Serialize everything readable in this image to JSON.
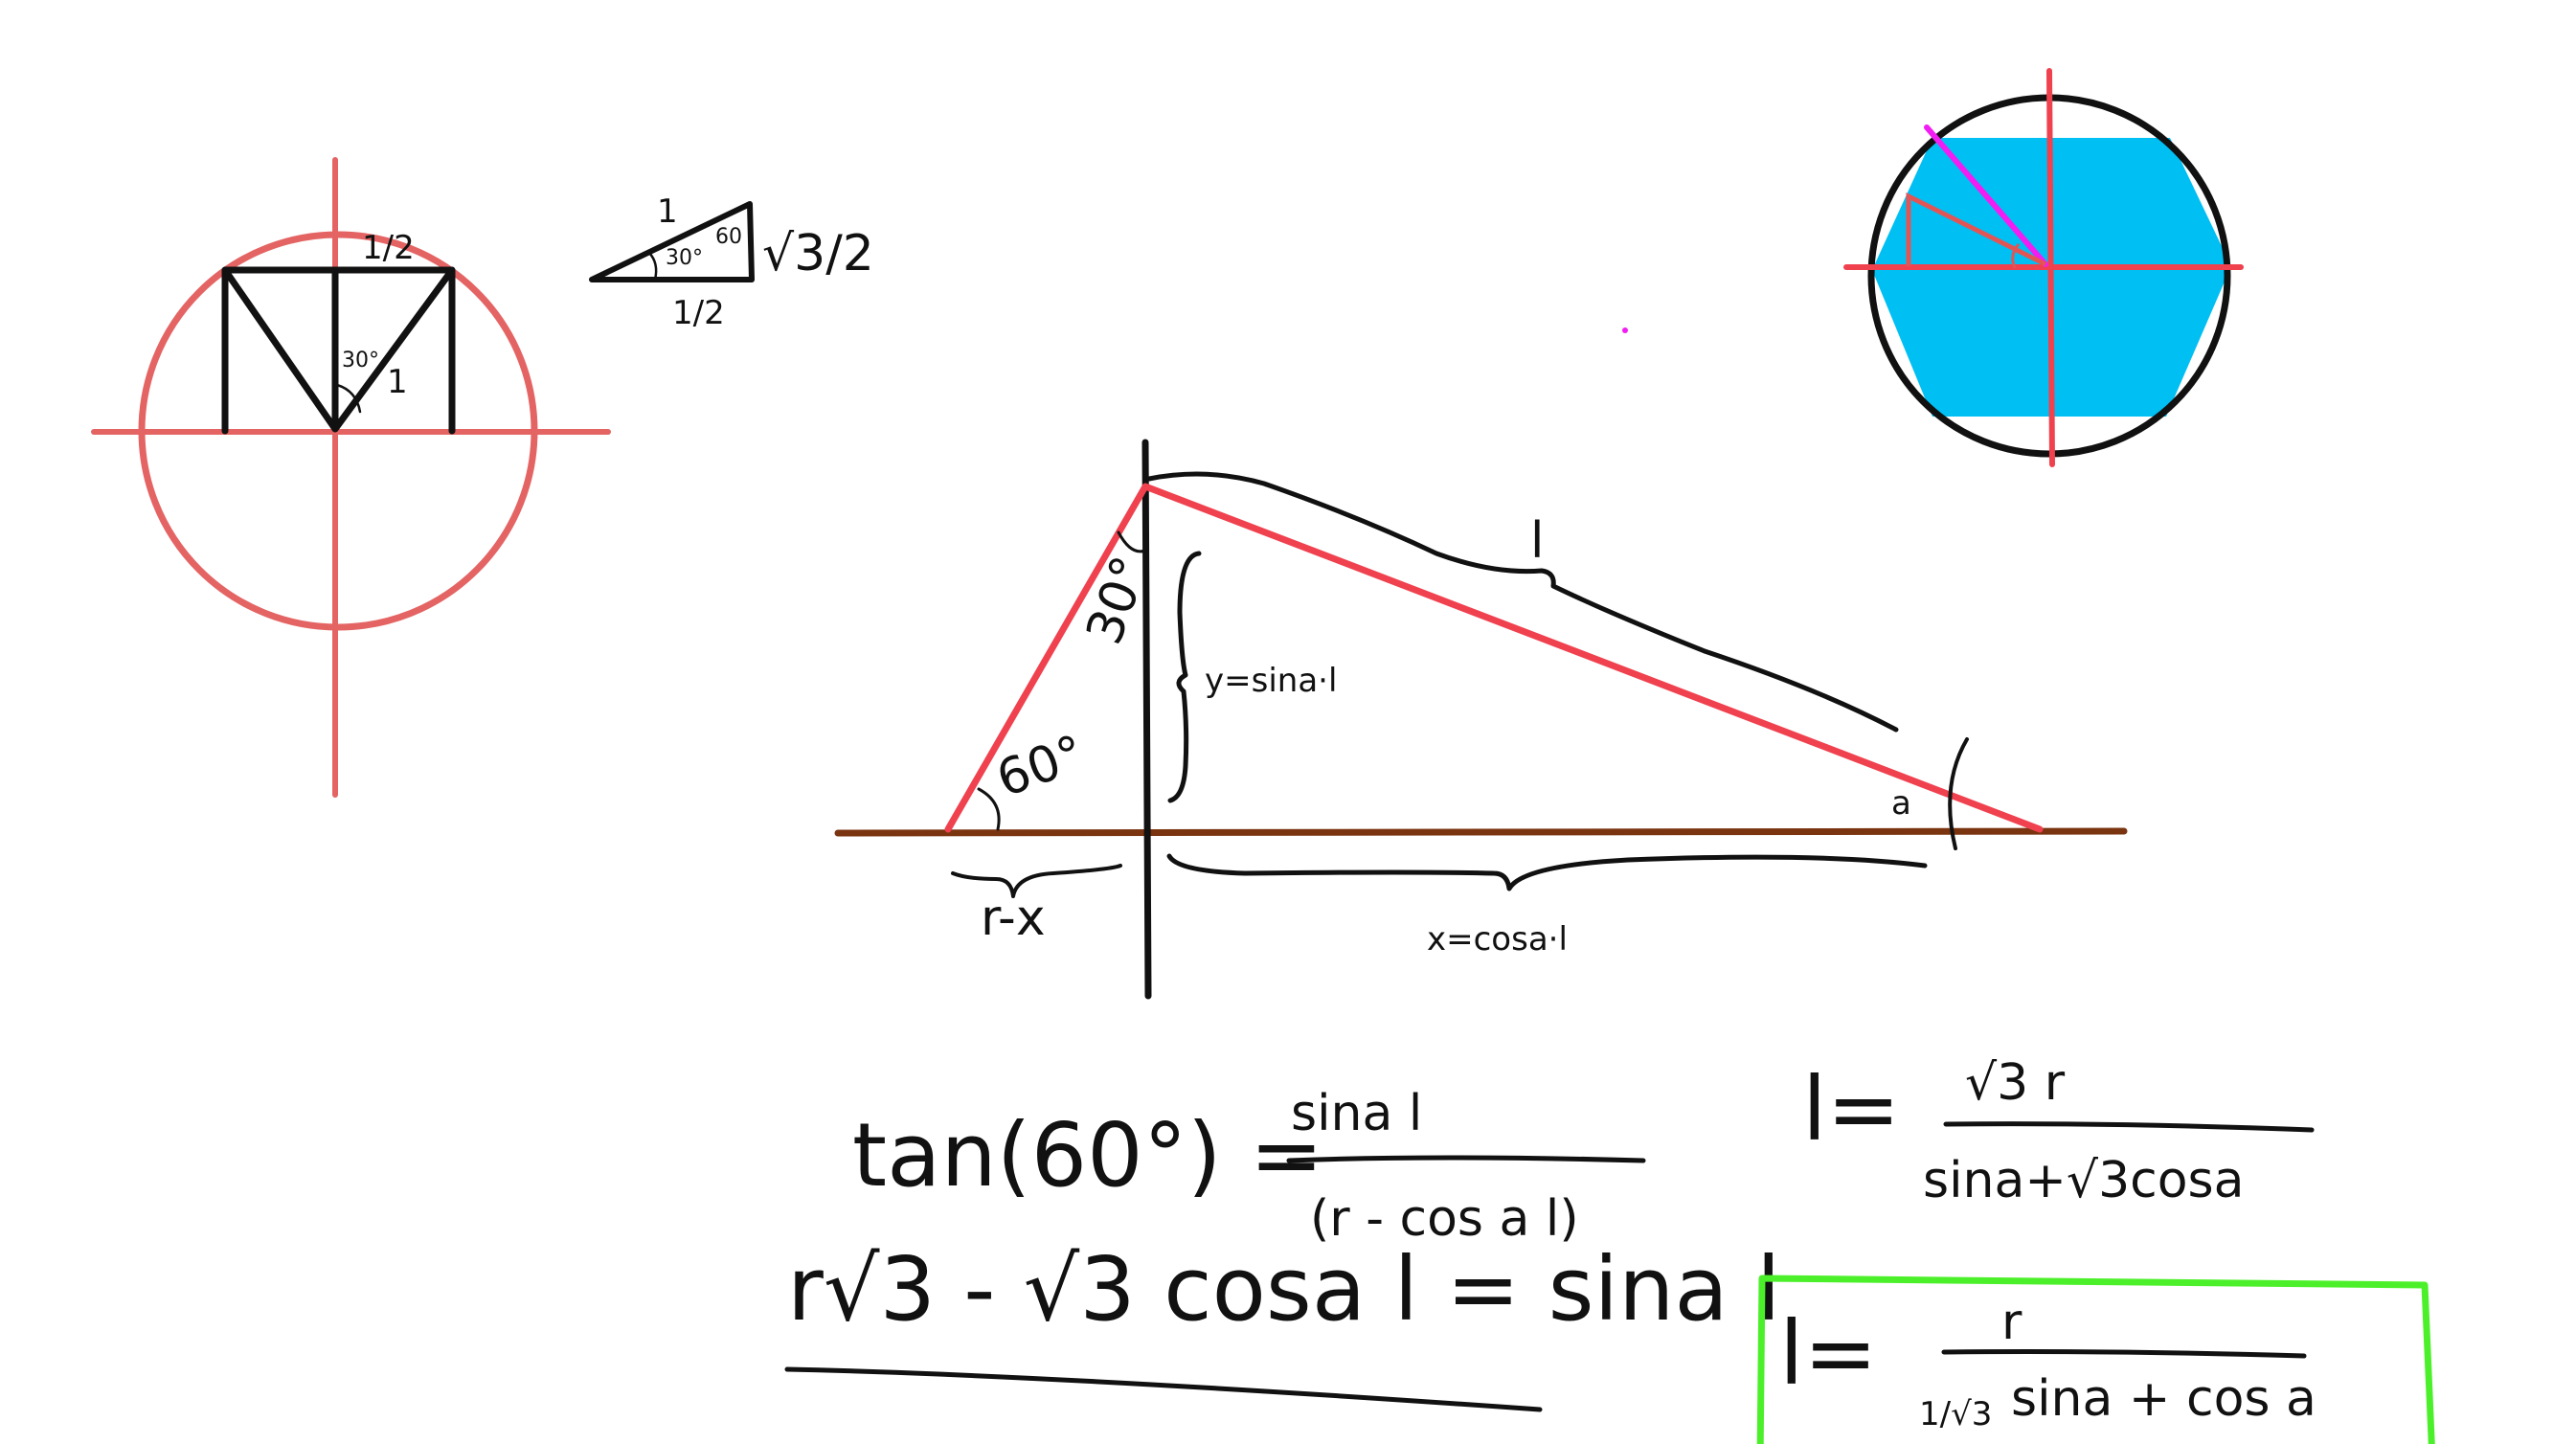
{
  "colors": {
    "ink": "#111111",
    "red": "#f0414f",
    "salmon": "#e46464",
    "brown": "#7a3410",
    "cyan": "#00bff3",
    "magenta": "#f21df2",
    "green": "#4cf02a",
    "background": "#ffffff"
  },
  "unit_circle": {
    "top_label": "1/2",
    "angle_label": "30°",
    "side_label": "1"
  },
  "small_triangle": {
    "hyp_label": "1",
    "angle_30": "30°",
    "angle_60": "60",
    "vertical_label": "√3/2",
    "bottom_label": "1/2"
  },
  "main_diagram": {
    "hyp_label": "l",
    "angle_30": "30°",
    "angle_60": "60°",
    "y_label": "y=sina·l",
    "x_label": "x=cosa·l",
    "left_label": "r-x",
    "alpha_label": "a"
  },
  "equations": {
    "eq1_lhs": "tan(60°) =",
    "eq1_num": "sina l",
    "eq1_den": "(r - cos a l)",
    "eq2": "r√3 - √3 cosa l = sina l"
  },
  "result1": {
    "lhs": "l=",
    "num": "√3 r",
    "den": "sina+√3cosa"
  },
  "result2": {
    "lhs": "l=",
    "num": "r",
    "den_coef": "1/√3",
    "den_rest": "sina + cos a"
  }
}
